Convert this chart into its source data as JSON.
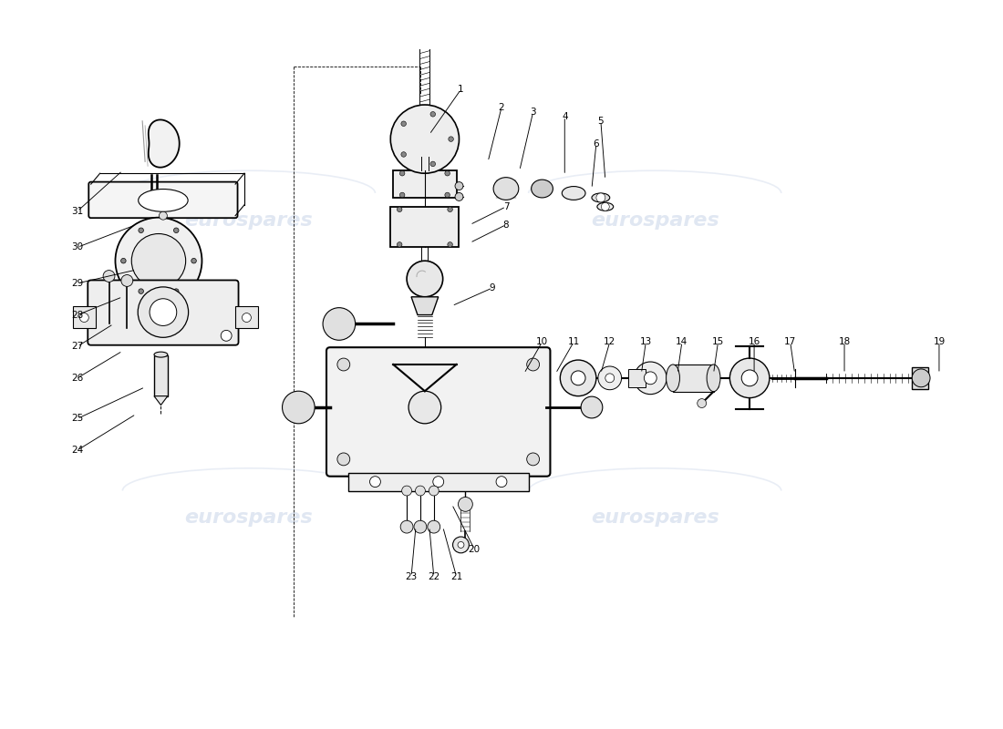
{
  "bg_color": "#ffffff",
  "line_color": "#000000",
  "watermark_color": "#c8d4e8",
  "watermark_text": "eurospares",
  "figsize": [
    11.0,
    8.0
  ],
  "dpi": 100,
  "xlim": [
    0,
    110
  ],
  "ylim": [
    0,
    80
  ],
  "leaders": [
    [
      1,
      50.5,
      70.5,
      47.0,
      65.5
    ],
    [
      2,
      55.0,
      68.5,
      53.5,
      62.5
    ],
    [
      3,
      58.5,
      68.0,
      57.0,
      61.5
    ],
    [
      4,
      62.0,
      67.5,
      62.0,
      61.0
    ],
    [
      5,
      66.0,
      67.0,
      66.5,
      60.5
    ],
    [
      6,
      65.5,
      64.5,
      65.0,
      59.5
    ],
    [
      7,
      55.5,
      57.5,
      51.5,
      55.5
    ],
    [
      8,
      55.5,
      55.5,
      51.5,
      53.5
    ],
    [
      9,
      54.0,
      48.5,
      49.5,
      46.5
    ],
    [
      10,
      59.5,
      42.5,
      57.5,
      39.0
    ],
    [
      11,
      63.0,
      42.5,
      61.0,
      39.0
    ],
    [
      12,
      67.0,
      42.5,
      66.0,
      39.0
    ],
    [
      13,
      71.0,
      42.5,
      70.5,
      39.0
    ],
    [
      14,
      75.0,
      42.5,
      74.5,
      39.0
    ],
    [
      15,
      79.0,
      42.5,
      78.5,
      39.0
    ],
    [
      16,
      83.0,
      42.5,
      83.0,
      39.0
    ],
    [
      17,
      87.0,
      42.5,
      87.5,
      39.0
    ],
    [
      18,
      93.0,
      42.5,
      93.0,
      39.0
    ],
    [
      19,
      103.5,
      42.5,
      103.5,
      39.0
    ],
    [
      20,
      52.0,
      19.5,
      49.5,
      24.5
    ],
    [
      21,
      50.0,
      16.5,
      48.5,
      22.0
    ],
    [
      22,
      47.5,
      16.5,
      47.0,
      22.0
    ],
    [
      23,
      45.0,
      16.5,
      45.5,
      22.0
    ],
    [
      24,
      8.0,
      30.5,
      14.5,
      34.5
    ],
    [
      25,
      8.0,
      34.0,
      15.5,
      37.5
    ],
    [
      26,
      8.0,
      38.5,
      13.0,
      41.5
    ],
    [
      27,
      8.0,
      42.0,
      12.0,
      44.5
    ],
    [
      28,
      8.0,
      45.5,
      13.0,
      47.5
    ],
    [
      29,
      8.0,
      49.0,
      14.5,
      50.5
    ],
    [
      30,
      8.0,
      53.0,
      14.5,
      55.5
    ],
    [
      31,
      8.0,
      57.0,
      13.0,
      61.5
    ]
  ]
}
